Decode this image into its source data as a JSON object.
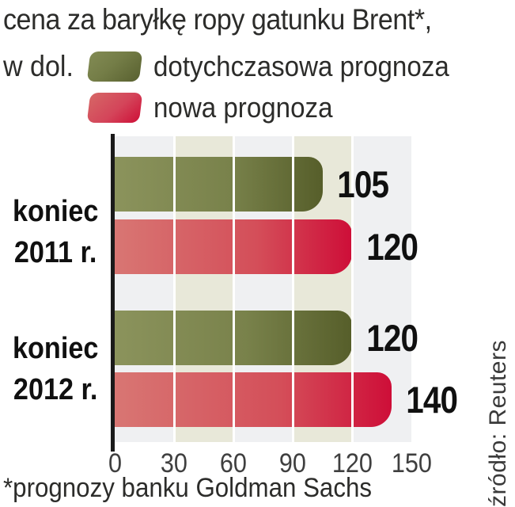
{
  "title": "cena za baryłkę ropy gatunku Brent*,",
  "subtitle": "w dol.",
  "legend": {
    "items": [
      {
        "label": "dotychczasowa prognoza",
        "swatch": "green-rounded-swatch"
      },
      {
        "label": "nowa prognoza",
        "swatch": "red-rounded-swatch"
      }
    ]
  },
  "chart_data": {
    "type": "bar",
    "orientation": "horizontal",
    "title": "cena za baryłkę ropy gatunku Brent*, w dol.",
    "categories": [
      "koniec 2011 r.",
      "koniec 2012 r."
    ],
    "series": [
      {
        "name": "dotychczasowa prognoza",
        "values": [
          105,
          120
        ],
        "color_start": "#79824b",
        "color_end": "#565e2a"
      },
      {
        "name": "nowa prognoza",
        "values": [
          120,
          140
        ],
        "color_start": "#d87673",
        "color_end": "#ce0e38"
      }
    ],
    "xlim": [
      0,
      150
    ],
    "xticks": [
      "0",
      "30",
      "60",
      "90",
      "120",
      "150"
    ],
    "grid": "white vertical gridlines every 30 units",
    "legend_position": "top",
    "plot_stripe_colors": [
      "#eff0f2",
      "#e8e8d9"
    ],
    "value_labels_shown": true
  },
  "footnote": "*prognozy banku Goldman Sachs",
  "source": "źródło: Reuters",
  "colors": {
    "text_primary": "#2c2c2a",
    "bold_labels": "#101010",
    "axis": "#1a1a1a",
    "tick_text": "#3f3f3f",
    "stripe_gray": "#eff0f2",
    "stripe_beige": "#e8e8d9",
    "green_dark": "#565e2a",
    "red_dark": "#ce0e38"
  }
}
